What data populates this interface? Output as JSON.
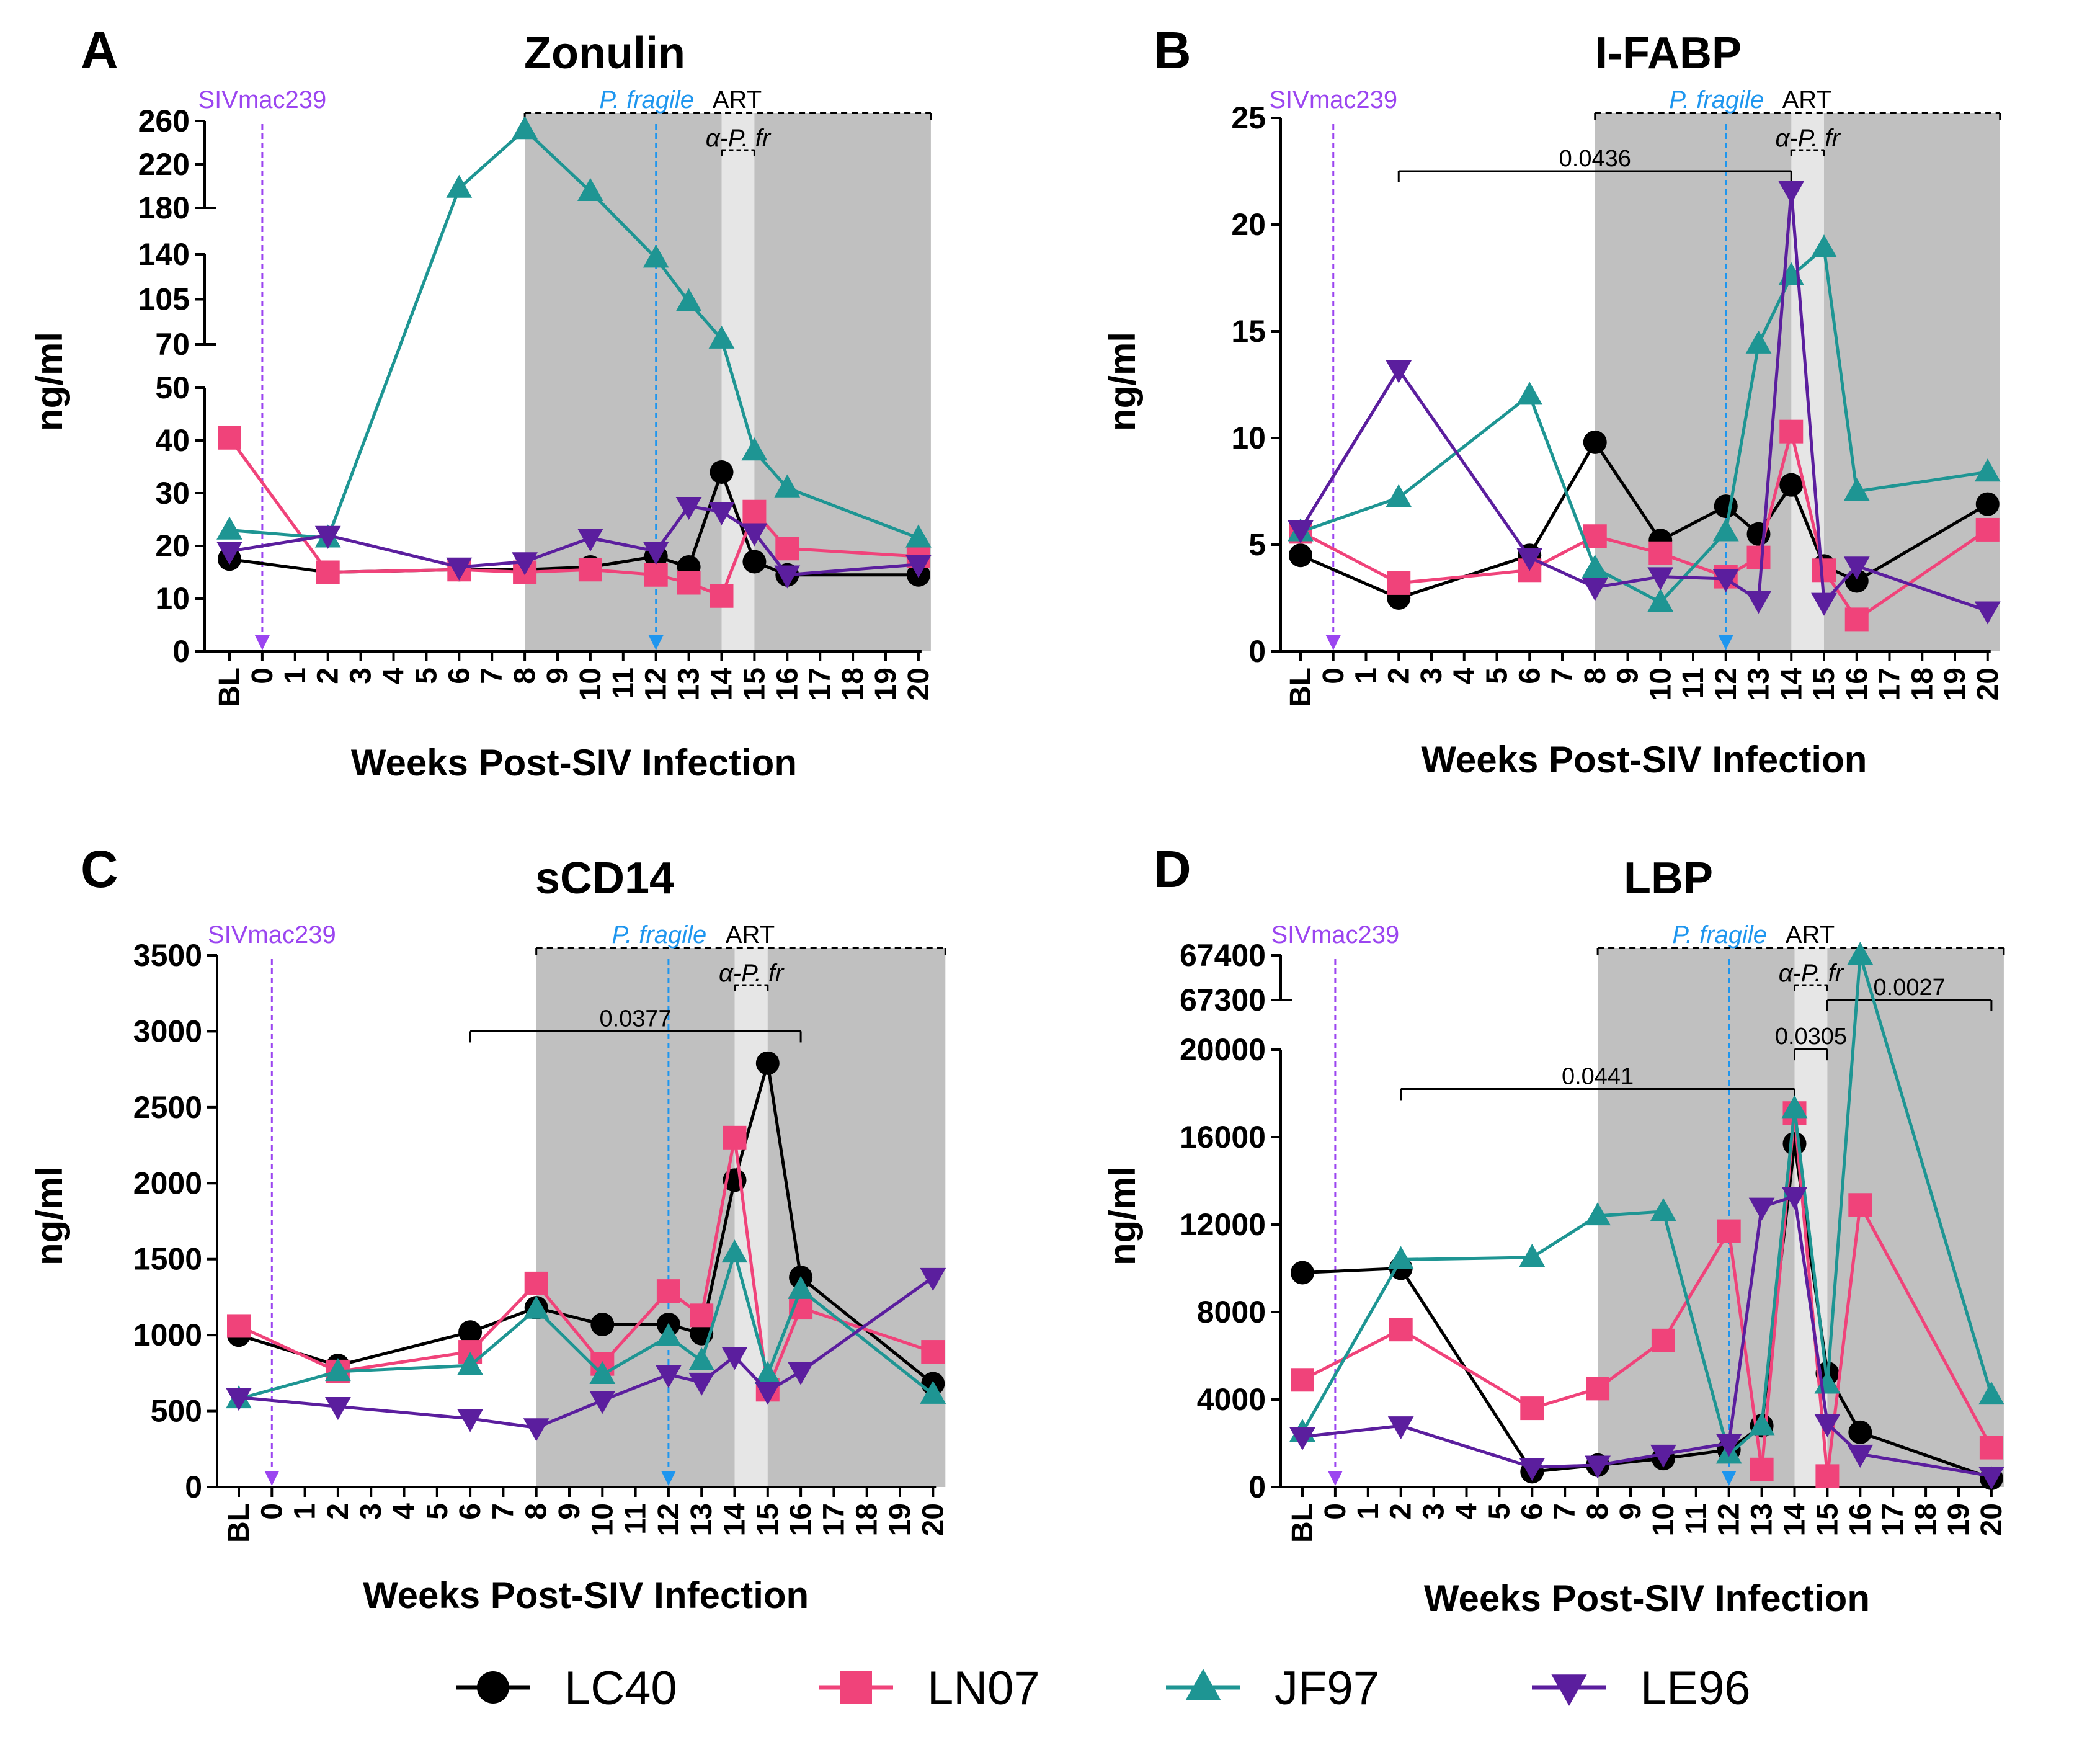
{
  "legend": [
    {
      "name": "LC40",
      "color": "#000000",
      "marker": "circle"
    },
    {
      "name": "LN07",
      "color": "#f0437a",
      "marker": "square"
    },
    {
      "name": "JF97",
      "color": "#1e9593",
      "marker": "triangle-up"
    },
    {
      "name": "LE96",
      "color": "#5b1e9e",
      "marker": "triangle-down"
    }
  ],
  "colors": {
    "siv": "#9b45f0",
    "pfragile": "#1e96ef",
    "art_shade": "#c0c0c0",
    "apfr_shade": "#e6e6e6"
  },
  "chart_data": [
    {
      "panel": "A",
      "title": "Zonulin",
      "type": "line",
      "xlabel": "Weeks Post-SIV Infection",
      "ylabel": "ng/ml",
      "categories": [
        "BL",
        "0",
        "1",
        "2",
        "3",
        "4",
        "5",
        "6",
        "7",
        "8",
        "9",
        "10",
        "11",
        "12",
        "13",
        "14",
        "15",
        "16",
        "17",
        "18",
        "19",
        "20"
      ],
      "axis_breaks": [
        {
          "from": 0,
          "to": 50,
          "ticks": [
            0,
            10,
            20,
            30,
            40,
            50
          ]
        },
        {
          "from": 70,
          "to": 140,
          "ticks": [
            70,
            105,
            140
          ]
        },
        {
          "from": 180,
          "to": 260,
          "ticks": [
            180,
            220,
            260
          ]
        }
      ],
      "annotations": {
        "siv": "SIVmac239",
        "pfragile": "P. fragile",
        "art": "ART",
        "apfr": "α-P. fr"
      },
      "siv_week": 0,
      "pfragile_week": 12,
      "art_start_week": 8,
      "apfr_weeks": [
        14,
        15
      ],
      "brackets": [],
      "series": [
        {
          "name": "LC40",
          "values": [
            17.5,
            null,
            null,
            15,
            null,
            null,
            null,
            15.5,
            null,
            15.5,
            null,
            16,
            null,
            18,
            16,
            34,
            17,
            14.5,
            null,
            null,
            null,
            14.5
          ]
        },
        {
          "name": "LN07",
          "values": [
            40.5,
            null,
            null,
            15,
            null,
            null,
            null,
            15.5,
            null,
            15,
            null,
            15.5,
            null,
            14.5,
            13,
            10.5,
            26.5,
            19.5,
            null,
            null,
            null,
            18
          ]
        },
        {
          "name": "JF97",
          "values": [
            23,
            null,
            null,
            21.5,
            null,
            null,
            null,
            198,
            null,
            252,
            null,
            195,
            null,
            137,
            103,
            74,
            38,
            31,
            null,
            null,
            null,
            21.5
          ]
        },
        {
          "name": "LE96",
          "values": [
            19,
            null,
            null,
            22,
            null,
            null,
            null,
            16,
            null,
            17,
            null,
            21.5,
            null,
            19,
            27.5,
            26.5,
            22.5,
            14.5,
            null,
            null,
            null,
            16.5
          ]
        }
      ]
    },
    {
      "panel": "B",
      "title": "I-FABP",
      "type": "line",
      "xlabel": "Weeks Post-SIV Infection",
      "ylabel": "ng/ml",
      "categories": [
        "BL",
        "0",
        "1",
        "2",
        "3",
        "4",
        "5",
        "6",
        "7",
        "8",
        "9",
        "10",
        "11",
        "12",
        "13",
        "14",
        "15",
        "16",
        "17",
        "18",
        "19",
        "20"
      ],
      "axis_breaks": [
        {
          "from": 0,
          "to": 25,
          "ticks": [
            0,
            5,
            10,
            15,
            20,
            25
          ]
        }
      ],
      "annotations": {
        "siv": "SIVmac239",
        "pfragile": "P. fragile",
        "art": "ART",
        "apfr": "α-P. fr"
      },
      "siv_week": 0,
      "pfragile_week": 12,
      "art_start_week": 8,
      "apfr_weeks": [
        14,
        15
      ],
      "brackets": [
        {
          "from_week": 2,
          "to_week": 14,
          "y": 22.5,
          "label": "0.0436"
        }
      ],
      "series": [
        {
          "name": "LC40",
          "values": [
            4.5,
            null,
            null,
            2.5,
            null,
            null,
            null,
            4.5,
            null,
            9.8,
            null,
            5.2,
            null,
            6.8,
            5.5,
            7.8,
            4,
            3.3,
            null,
            null,
            null,
            6.9
          ]
        },
        {
          "name": "LN07",
          "values": [
            5.6,
            null,
            null,
            3.2,
            null,
            null,
            null,
            3.8,
            null,
            5.4,
            null,
            4.6,
            null,
            3.5,
            4.4,
            10.3,
            3.8,
            1.5,
            null,
            null,
            null,
            5.7
          ]
        },
        {
          "name": "JF97",
          "values": [
            5.6,
            null,
            null,
            7.2,
            null,
            null,
            null,
            12,
            null,
            3.9,
            null,
            2.3,
            null,
            5.6,
            14.4,
            17.6,
            18.9,
            7.5,
            null,
            null,
            null,
            8.4
          ]
        },
        {
          "name": "LE96",
          "values": [
            5.7,
            null,
            null,
            13.2,
            null,
            null,
            null,
            4.4,
            null,
            3,
            null,
            3.5,
            null,
            3.4,
            2.4,
            21.6,
            2.3,
            4,
            null,
            null,
            null,
            1.9
          ]
        }
      ]
    },
    {
      "panel": "C",
      "title": "sCD14",
      "type": "line",
      "xlabel": "Weeks Post-SIV Infection",
      "ylabel": "ng/ml",
      "categories": [
        "BL",
        "0",
        "1",
        "2",
        "3",
        "4",
        "5",
        "6",
        "7",
        "8",
        "9",
        "10",
        "11",
        "12",
        "13",
        "14",
        "15",
        "16",
        "17",
        "18",
        "19",
        "20"
      ],
      "axis_breaks": [
        {
          "from": 0,
          "to": 3500,
          "ticks": [
            0,
            500,
            1000,
            1500,
            2000,
            2500,
            3000,
            3500
          ]
        }
      ],
      "annotations": {
        "siv": "SIVmac239",
        "pfragile": "P. fragile",
        "art": "ART",
        "apfr": "α-P. fr"
      },
      "siv_week": 0,
      "pfragile_week": 12,
      "art_start_week": 8,
      "apfr_weeks": [
        14,
        15
      ],
      "brackets": [
        {
          "from_week": 6,
          "to_week": 16,
          "y": 3000,
          "label": "0.0377"
        }
      ],
      "series": [
        {
          "name": "LC40",
          "values": [
            1000,
            null,
            null,
            800,
            null,
            null,
            null,
            1020,
            null,
            1180,
            null,
            1070,
            null,
            1070,
            1010,
            2020,
            2790,
            1380,
            null,
            null,
            null,
            680
          ]
        },
        {
          "name": "LN07",
          "values": [
            1060,
            null,
            null,
            760,
            null,
            null,
            null,
            890,
            null,
            1340,
            null,
            810,
            null,
            1290,
            1130,
            2300,
            640,
            1180,
            null,
            null,
            null,
            890
          ]
        },
        {
          "name": "JF97",
          "values": [
            580,
            null,
            null,
            760,
            null,
            null,
            null,
            800,
            null,
            1170,
            null,
            740,
            null,
            990,
            830,
            1540,
            740,
            1300,
            null,
            null,
            null,
            610
          ]
        },
        {
          "name": "LE96",
          "values": [
            590,
            null,
            null,
            530,
            null,
            null,
            null,
            450,
            null,
            390,
            null,
            570,
            null,
            740,
            690,
            860,
            630,
            760,
            null,
            null,
            null,
            1380
          ]
        }
      ]
    },
    {
      "panel": "D",
      "title": "LBP",
      "type": "line",
      "xlabel": "Weeks Post-SIV Infection",
      "ylabel": "ng/ml",
      "categories": [
        "BL",
        "0",
        "1",
        "2",
        "3",
        "4",
        "5",
        "6",
        "7",
        "8",
        "9",
        "10",
        "11",
        "12",
        "13",
        "14",
        "15",
        "16",
        "17",
        "18",
        "19",
        "20"
      ],
      "axis_breaks": [
        {
          "from": 0,
          "to": 20000,
          "ticks": [
            0,
            4000,
            8000,
            12000,
            16000,
            20000
          ]
        },
        {
          "from": 67300,
          "to": 67400,
          "ticks": [
            67300,
            67400
          ]
        }
      ],
      "annotations": {
        "siv": "SIVmac239",
        "pfragile": "P. fragile",
        "art": "ART",
        "apfr": "α-P. fr"
      },
      "siv_week": 0,
      "pfragile_week": 12,
      "art_start_week": 8,
      "apfr_weeks": [
        14,
        15
      ],
      "brackets": [
        {
          "from_week": 2,
          "to_week": 14,
          "y": 18200,
          "label": "0.0441"
        },
        {
          "from_week": 14,
          "to_week": 15,
          "y": 20500,
          "label": "0.0305"
        },
        {
          "from_week": 15,
          "to_week": 20,
          "y": 67285,
          "label": "0.0027"
        }
      ],
      "series": [
        {
          "name": "LC40",
          "values": [
            9800,
            null,
            null,
            10000,
            null,
            null,
            null,
            700,
            null,
            1000,
            null,
            1300,
            null,
            1700,
            2800,
            15700,
            5200,
            2500,
            null,
            null,
            null,
            400
          ]
        },
        {
          "name": "LN07",
          "values": [
            4900,
            null,
            null,
            7200,
            null,
            null,
            null,
            3600,
            null,
            4500,
            null,
            6700,
            null,
            11700,
            800,
            17100,
            500,
            12900,
            null,
            null,
            null,
            1800
          ]
        },
        {
          "name": "JF97",
          "values": [
            2500,
            null,
            null,
            10400,
            null,
            null,
            null,
            10500,
            null,
            12400,
            null,
            12600,
            null,
            1500,
            2800,
            17300,
            4700,
            67400,
            null,
            null,
            null,
            4200
          ]
        },
        {
          "name": "LE96",
          "values": [
            2300,
            null,
            null,
            2800,
            null,
            null,
            null,
            900,
            null,
            1000,
            null,
            1500,
            null,
            2000,
            12800,
            13300,
            2900,
            1500,
            null,
            null,
            null,
            500
          ]
        }
      ]
    }
  ]
}
